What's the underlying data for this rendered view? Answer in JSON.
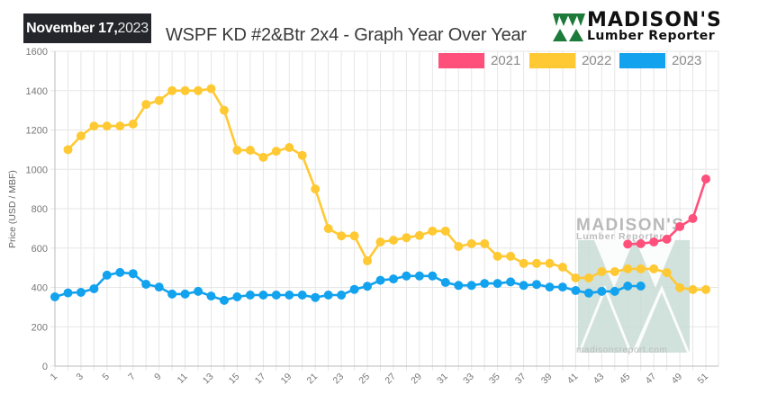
{
  "header": {
    "date_month_day": "November 17,",
    "date_year": "2023",
    "title": "WSPF KD #2&Btr 2x4 - Graph Year Over Year"
  },
  "logo": {
    "line1": "MADISON'S",
    "line2": "Lumber Reporter",
    "icon": "tree-triangles-icon"
  },
  "watermark": {
    "line1": "MADISON'S",
    "line2": "Lumber Reporter",
    "url": "madisonsreport.com"
  },
  "colors": {
    "2021": "#ff4f7b",
    "2022": "#ffc934",
    "2023": "#12a2ee",
    "badge": "#24262b",
    "grid": "#e6e6e6",
    "watermark": "#c9dcd6"
  },
  "chart_data": {
    "type": "line",
    "title": "WSPF KD #2&Btr 2x4 - Graph Year Over Year",
    "xlabel": "",
    "ylabel": "Price (USD / MBF)",
    "ylim": [
      0,
      1600
    ],
    "xlim": [
      1,
      52
    ],
    "yticks": [
      0,
      200,
      400,
      600,
      800,
      1000,
      1200,
      1400,
      1600
    ],
    "xticks": [
      1,
      3,
      5,
      7,
      9,
      11,
      13,
      15,
      17,
      19,
      21,
      23,
      25,
      27,
      29,
      31,
      33,
      35,
      37,
      39,
      41,
      43,
      45,
      47,
      49,
      51
    ],
    "grid": true,
    "legend_position": "top-right",
    "series": [
      {
        "name": "2021",
        "x": [
          45,
          46,
          47,
          48,
          49,
          50,
          51
        ],
        "values": [
          620,
          622,
          631,
          645,
          709,
          750,
          951
        ]
      },
      {
        "name": "2022",
        "x": [
          2,
          3,
          4,
          5,
          6,
          7,
          8,
          9,
          10,
          11,
          12,
          13,
          14,
          15,
          16,
          17,
          18,
          19,
          20,
          21,
          22,
          23,
          24,
          25,
          26,
          27,
          28,
          29,
          30,
          31,
          32,
          33,
          34,
          35,
          36,
          37,
          38,
          39,
          40,
          41,
          42,
          43,
          44,
          45,
          46,
          47,
          48,
          49,
          50,
          51
        ],
        "values": [
          1100,
          1170,
          1220,
          1220,
          1220,
          1230,
          1330,
          1350,
          1400,
          1400,
          1400,
          1410,
          1300,
          1097,
          1097,
          1061,
          1092,
          1111,
          1071,
          900,
          699,
          662,
          662,
          535,
          631,
          640,
          653,
          664,
          686,
          686,
          608,
          622,
          622,
          558,
          558,
          522,
          522,
          522,
          503,
          448,
          448,
          480,
          480,
          494,
          494,
          494,
          475,
          398,
          389,
          389
        ]
      },
      {
        "name": "2023",
        "x": [
          1,
          2,
          3,
          4,
          5,
          6,
          7,
          8,
          9,
          10,
          11,
          12,
          13,
          14,
          15,
          16,
          17,
          18,
          19,
          20,
          21,
          22,
          23,
          24,
          25,
          26,
          27,
          28,
          29,
          30,
          31,
          32,
          33,
          34,
          35,
          36,
          37,
          38,
          39,
          40,
          41,
          42,
          43,
          44,
          45,
          46
        ],
        "values": [
          352,
          372,
          375,
          393,
          462,
          476,
          470,
          416,
          402,
          366,
          366,
          380,
          356,
          334,
          352,
          361,
          361,
          361,
          361,
          361,
          349,
          361,
          361,
          390,
          406,
          436,
          443,
          458,
          458,
          458,
          425,
          410,
          410,
          420,
          420,
          428,
          410,
          415,
          402,
          402,
          384,
          371,
          380,
          380,
          407,
          407
        ]
      }
    ]
  }
}
